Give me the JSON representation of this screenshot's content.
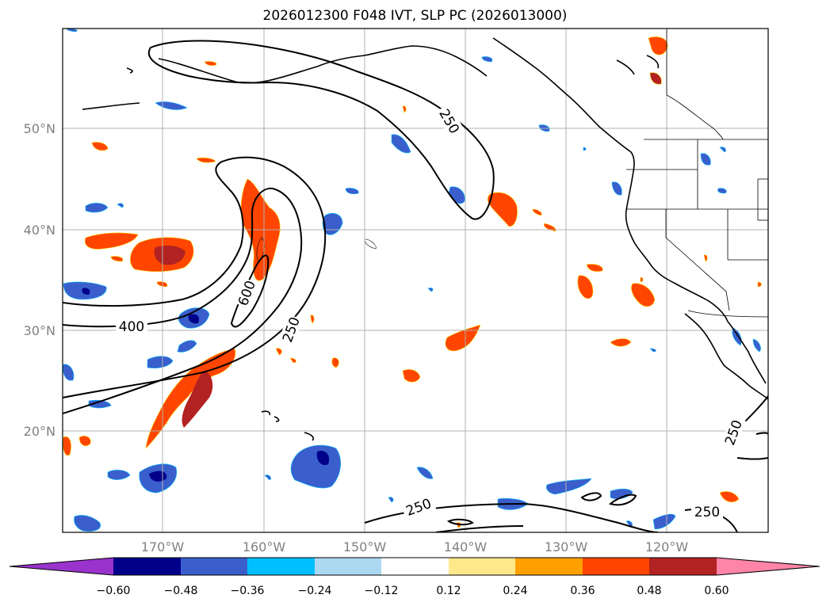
{
  "title": "2026012300 F048 IVT, SLP PC (2026013000)",
  "latitude_labels": [
    "50°N",
    "40°N",
    "30°N",
    "20°N"
  ],
  "longitude_labels": [
    "170°W",
    "160°W",
    "150°W",
    "140°W",
    "130°W",
    "120°W"
  ],
  "contour_labels": [
    "250",
    "250",
    "400",
    "600",
    "250",
    "250",
    "250"
  ],
  "colorbar": {
    "tick_labels": [
      "−0.60",
      "−0.48",
      "−0.36",
      "−0.24",
      "−0.12",
      "0.12",
      "0.24",
      "0.36",
      "0.48",
      "0.60"
    ],
    "colors": [
      "#9933cc",
      "#00008b",
      "#3a5fcd",
      "#00bfff",
      "#add8f2",
      "#ffffff",
      "#ffe88a",
      "#ffa000",
      "#ff4500",
      "#b22222",
      "#ff85a8"
    ]
  },
  "colors": {
    "grid": "#b0b0b0",
    "coast": "#000000",
    "contour": "#000000"
  }
}
